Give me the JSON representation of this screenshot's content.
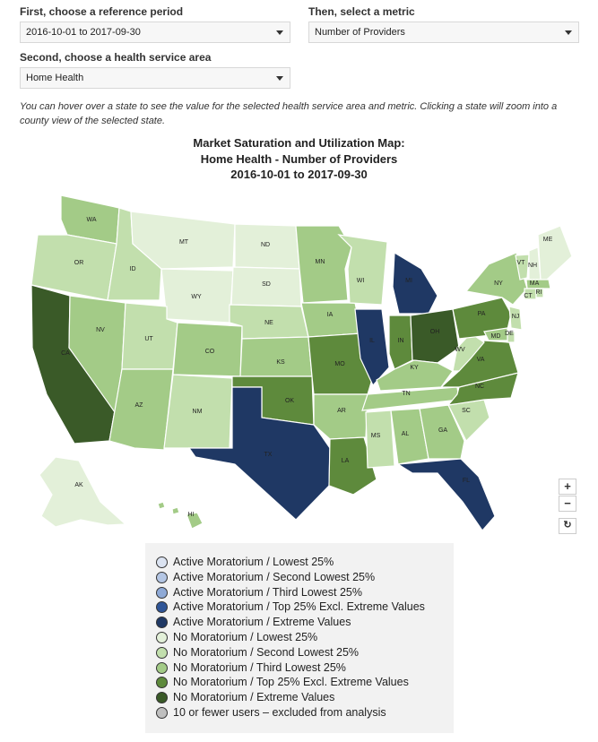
{
  "controls": {
    "period_label": "First, choose a reference period",
    "period_value": "2016-10-01 to 2017-09-30",
    "metric_label": "Then, select a metric",
    "metric_value": "Number of Providers",
    "service_label": "Second, choose a health service area",
    "service_value": "Home Health"
  },
  "hint": "You can hover over a state to see the value for the selected health service area and metric. Clicking a state will zoom into a county view of the selected state.",
  "title": {
    "line1": "Market Saturation and Utilization Map:",
    "line2": "Home Health - Number of Providers",
    "line3": "2016-10-01 to 2017-09-30"
  },
  "colors": {
    "ext": "#3a5a28",
    "top": "#5e8a3c",
    "third": "#a3cb87",
    "second": "#c2dfad",
    "lowest": "#e3f0d9",
    "mor_ext": "#1f3864"
  },
  "states": [
    {
      "abbr": "WA",
      "cat": "third"
    },
    {
      "abbr": "OR",
      "cat": "second"
    },
    {
      "abbr": "CA",
      "cat": "ext"
    },
    {
      "abbr": "ID",
      "cat": "second"
    },
    {
      "abbr": "NV",
      "cat": "third"
    },
    {
      "abbr": "MT",
      "cat": "lowest"
    },
    {
      "abbr": "WY",
      "cat": "lowest"
    },
    {
      "abbr": "UT",
      "cat": "second"
    },
    {
      "abbr": "AZ",
      "cat": "third"
    },
    {
      "abbr": "CO",
      "cat": "third"
    },
    {
      "abbr": "NM",
      "cat": "second"
    },
    {
      "abbr": "ND",
      "cat": "lowest"
    },
    {
      "abbr": "SD",
      "cat": "lowest"
    },
    {
      "abbr": "NE",
      "cat": "second"
    },
    {
      "abbr": "KS",
      "cat": "third"
    },
    {
      "abbr": "OK",
      "cat": "top"
    },
    {
      "abbr": "TX",
      "cat": "mor_ext"
    },
    {
      "abbr": "MN",
      "cat": "third"
    },
    {
      "abbr": "IA",
      "cat": "third"
    },
    {
      "abbr": "MO",
      "cat": "top"
    },
    {
      "abbr": "AR",
      "cat": "third"
    },
    {
      "abbr": "LA",
      "cat": "top"
    },
    {
      "abbr": "WI",
      "cat": "second"
    },
    {
      "abbr": "IL",
      "cat": "mor_ext"
    },
    {
      "abbr": "MI",
      "cat": "mor_ext"
    },
    {
      "abbr": "IN",
      "cat": "top"
    },
    {
      "abbr": "OH",
      "cat": "ext"
    },
    {
      "abbr": "KY",
      "cat": "third"
    },
    {
      "abbr": "TN",
      "cat": "third"
    },
    {
      "abbr": "MS",
      "cat": "second"
    },
    {
      "abbr": "AL",
      "cat": "third"
    },
    {
      "abbr": "GA",
      "cat": "third"
    },
    {
      "abbr": "FL",
      "cat": "mor_ext"
    },
    {
      "abbr": "SC",
      "cat": "second"
    },
    {
      "abbr": "NC",
      "cat": "top"
    },
    {
      "abbr": "VA",
      "cat": "top"
    },
    {
      "abbr": "WV",
      "cat": "second"
    },
    {
      "abbr": "PA",
      "cat": "top"
    },
    {
      "abbr": "NY",
      "cat": "third"
    },
    {
      "abbr": "VT",
      "cat": "second"
    },
    {
      "abbr": "NH",
      "cat": "lowest"
    },
    {
      "abbr": "ME",
      "cat": "lowest"
    },
    {
      "abbr": "MA",
      "cat": "third"
    },
    {
      "abbr": "CT",
      "cat": "second"
    },
    {
      "abbr": "RI",
      "cat": "second"
    },
    {
      "abbr": "NJ",
      "cat": "second"
    },
    {
      "abbr": "DE",
      "cat": "second"
    },
    {
      "abbr": "MD",
      "cat": "third"
    },
    {
      "abbr": "AK",
      "cat": "lowest"
    },
    {
      "abbr": "HI",
      "cat": "third"
    }
  ],
  "zoom": {
    "in": "+",
    "out": "−",
    "reset": "↻"
  },
  "legend": [
    {
      "label": "Active Moratorium / Lowest 25%",
      "color": "#dbe3f1"
    },
    {
      "label": "Active Moratorium / Second Lowest 25%",
      "color": "#b4c6e4"
    },
    {
      "label": "Active Moratorium / Third Lowest 25%",
      "color": "#8ea9d6"
    },
    {
      "label": "Active Moratorium / Top 25% Excl. Extreme Values",
      "color": "#2f5597"
    },
    {
      "label": "Active Moratorium / Extreme Values",
      "color": "#1f3864"
    },
    {
      "label": "No Moratorium / Lowest 25%",
      "color": "#e3f0d9"
    },
    {
      "label": "No Moratorium / Second Lowest 25%",
      "color": "#c2dfad"
    },
    {
      "label": "No Moratorium / Third Lowest 25%",
      "color": "#a3cb87"
    },
    {
      "label": "No Moratorium / Top 25% Excl. Extreme Values",
      "color": "#5e8a3c"
    },
    {
      "label": "No Moratorium / Extreme Values",
      "color": "#3a5a28"
    },
    {
      "label": "10 or fewer users – excluded from analysis",
      "color": "#bfbfbf"
    }
  ]
}
